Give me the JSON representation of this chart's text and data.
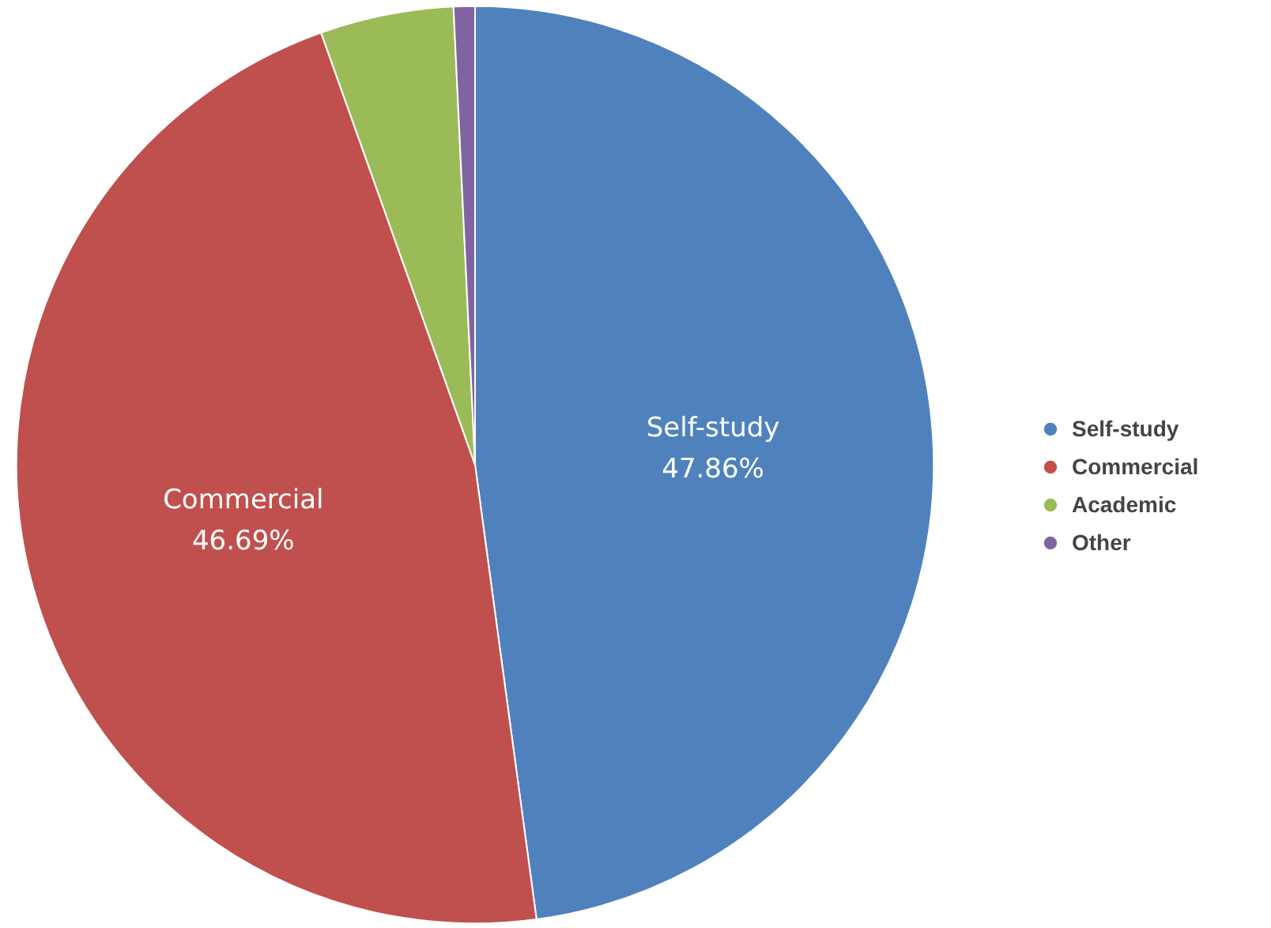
{
  "chart_data": {
    "type": "pie",
    "categories": [
      "Self-study",
      "Commercial",
      "Academic",
      "Other"
    ],
    "values": [
      47.86,
      46.69,
      4.7,
      0.75
    ],
    "colors": [
      "#4f81bd",
      "#c0504d",
      "#9bbb59",
      "#8064a2"
    ],
    "value_labels": [
      "47.86%",
      "46.69%",
      null,
      null
    ],
    "legend": "right"
  }
}
